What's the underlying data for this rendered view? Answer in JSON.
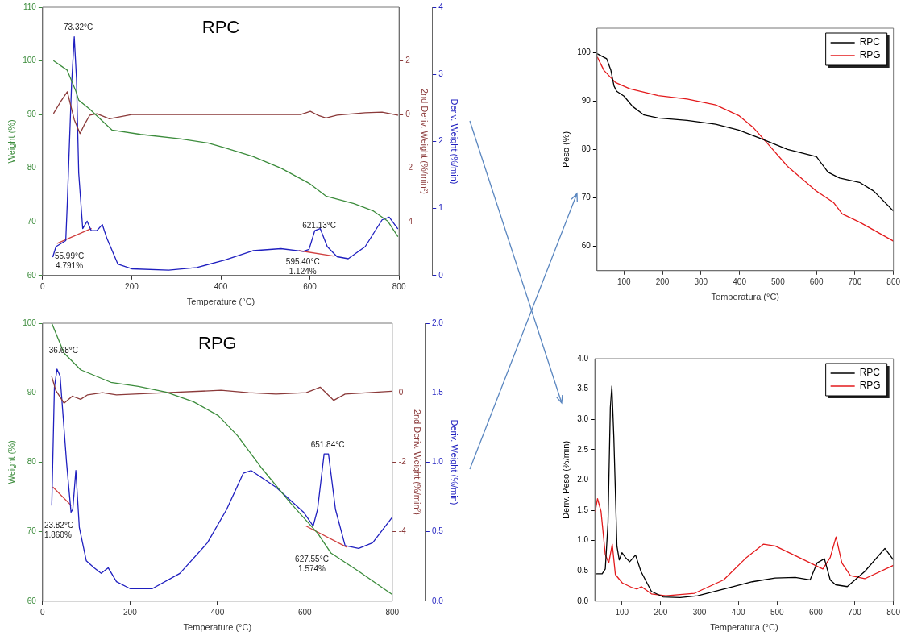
{
  "chart_data": [
    {
      "type": "line",
      "title": "RPC",
      "xlabel": "Temperature (°C)",
      "ylabel": "Weight (%)",
      "y2label": "2nd Deriv. Weight (%/min²)",
      "y3label": "Deriv. Weight (%/min)",
      "xlim": [
        0,
        800
      ],
      "xticks": [
        0,
        200,
        400,
        600,
        800
      ],
      "ylim": [
        60,
        110
      ],
      "yticks": [
        60,
        70,
        80,
        90,
        100,
        110
      ],
      "y2lim": [
        -6,
        4
      ],
      "y2ticks": [
        2,
        0,
        -2,
        -4
      ],
      "y3lim": [
        0,
        4
      ],
      "y3ticks": [
        0,
        1,
        2,
        3,
        4
      ],
      "series": [
        {
          "color": "#3c8c3c",
          "x": [
            25,
            55,
            74,
            81,
            106,
            156,
            220,
            308,
            371,
            409,
            472,
            535,
            598,
            636,
            699,
            743,
            775,
            797
          ],
          "values": [
            100,
            98.3,
            94.5,
            92.7,
            91,
            87.1,
            86.3,
            85.5,
            84.7,
            83.8,
            82.2,
            80,
            77.2,
            74.8,
            73.4,
            72,
            70.1,
            67.3
          ]
        },
        {
          "color": "#8b3a3a",
          "axis": "y2",
          "x": [
            25,
            40,
            55.5,
            71,
            84,
            93,
            106,
            122,
            150,
            200,
            535,
            579,
            601,
            617,
            636,
            661,
            724,
            762,
            797
          ],
          "values": [
            0.05,
            0.47,
            0.85,
            -0.19,
            -0.71,
            -0.4,
            -0.02,
            0.03,
            -0.16,
            0,
            0,
            0,
            0.12,
            -0.02,
            -0.13,
            -0.02,
            0.07,
            0.09,
            -0.02
          ]
        },
        {
          "color": "#1f1fbf",
          "axis": "y3",
          "x": [
            23,
            30,
            52,
            55.5,
            65,
            71,
            76,
            81,
            90,
            100,
            109,
            122,
            134,
            144,
            169,
            200,
            283,
            346,
            409,
            472,
            535,
            585,
            598,
            611,
            623,
            639,
            661,
            686,
            724,
            762,
            778,
            797
          ],
          "values": [
            0.28,
            0.43,
            0.52,
            1.09,
            2.85,
            3.56,
            2.94,
            1.53,
            0.7,
            0.81,
            0.67,
            0.67,
            0.76,
            0.56,
            0.17,
            0.1,
            0.08,
            0.12,
            0.23,
            0.37,
            0.4,
            0.36,
            0.39,
            0.67,
            0.7,
            0.43,
            0.28,
            0.25,
            0.43,
            0.83,
            0.87,
            0.7
          ]
        },
        {
          "color": "#d04040",
          "axis": "y3",
          "x": [
            33,
            109
          ],
          "values": [
            0.48,
            0.7
          ]
        },
        {
          "color": "#d04040",
          "axis": "y3",
          "x": [
            576,
            652
          ],
          "values": [
            0.37,
            0.29
          ]
        }
      ],
      "annotations": [
        "73.32°C",
        "55.99°C\n4.791%",
        "621.13°C",
        "595.40°C\n1.124%"
      ]
    },
    {
      "type": "line",
      "title": "RPG",
      "xlabel": "Temperature (°C)",
      "ylabel": "Weight (%)",
      "y2label": "2nd Deriv. Weight (%/min²)",
      "y3label": "Deriv. Weight (%/min)",
      "xlim": [
        0,
        800
      ],
      "xticks": [
        0,
        200,
        400,
        600,
        800
      ],
      "ylim": [
        60,
        100
      ],
      "yticks": [
        60,
        70,
        80,
        90,
        100
      ],
      "y2lim": [
        -6,
        2
      ],
      "y2ticks": [
        0,
        -2,
        -4
      ],
      "y3lim": [
        0,
        2
      ],
      "y3ticks": [
        {
          "value": 0,
          "label": "0.0"
        },
        {
          "value": 0.5,
          "label": "0.5"
        },
        {
          "value": 1,
          "label": "1.0"
        },
        {
          "value": 1.5,
          "label": "1.5"
        },
        {
          "value": 2,
          "label": "2.0"
        }
      ],
      "series": [
        {
          "color": "#3c8c3c",
          "x": [
            21,
            49,
            87,
            156,
            219,
            282,
            345,
            402,
            446,
            503,
            566,
            629,
            660,
            723,
            799
          ],
          "values": [
            100,
            95.7,
            93.3,
            91.5,
            90.9,
            90.1,
            88.7,
            86.7,
            83.8,
            79,
            74.2,
            69.8,
            66.9,
            64.3,
            61
          ]
        },
        {
          "color": "#8b3a3a",
          "axis": "y2",
          "x": [
            21,
            30,
            49,
            68,
            87,
            103,
            137,
            169,
            282,
            408,
            471,
            534,
            603,
            635,
            666,
            692,
            799
          ],
          "values": [
            0.46,
            0.07,
            -0.3,
            -0.1,
            -0.19,
            -0.06,
            0,
            -0.06,
            0,
            0.07,
            0,
            -0.04,
            0,
            0.16,
            -0.22,
            -0.04,
            0.04
          ]
        },
        {
          "color": "#1f1fbf",
          "axis": "y3",
          "x": [
            21,
            27,
            33,
            40,
            55,
            65,
            69,
            76,
            84,
            100,
            118,
            134,
            150,
            169,
            200,
            251,
            314,
            377,
            421,
            459,
            477,
            534,
            597,
            619,
            629,
            644,
            654,
            670,
            692,
            723,
            755,
            799
          ],
          "values": [
            0.69,
            1.54,
            1.67,
            1.62,
            0.99,
            0.64,
            0.66,
            0.94,
            0.53,
            0.29,
            0.24,
            0.2,
            0.24,
            0.14,
            0.09,
            0.09,
            0.2,
            0.42,
            0.66,
            0.92,
            0.94,
            0.82,
            0.64,
            0.54,
            0.66,
            1.06,
            1.06,
            0.66,
            0.4,
            0.38,
            0.42,
            0.6
          ]
        },
        {
          "color": "#d04040",
          "axis": "y3",
          "x": [
            24,
            65
          ],
          "values": [
            0.82,
            0.69
          ]
        },
        {
          "color": "#d04040",
          "axis": "y3",
          "x": [
            603,
            695
          ],
          "values": [
            0.54,
            0.39
          ]
        }
      ],
      "annotations": [
        "36.68°C",
        "23.82°C\n1.860%",
        "651.84°C",
        "627.55°C\n1.574%"
      ]
    },
    {
      "type": "line",
      "xlabel": "Temperatura (°C)",
      "ylabel": "Peso (%)",
      "xlim": [
        30,
        800
      ],
      "xticks": [
        100,
        200,
        300,
        400,
        500,
        600,
        700,
        800
      ],
      "ylim": [
        55,
        105
      ],
      "yticks": [
        60,
        70,
        80,
        90,
        100
      ],
      "legend": "top right",
      "series": [
        {
          "name": "RPC",
          "color": "#000000",
          "x": [
            31,
            55,
            66,
            74,
            81,
            100,
            122,
            152,
            189,
            264,
            338,
            398,
            450,
            525,
            600,
            630,
            660,
            712,
            749,
            800
          ],
          "values": [
            99.7,
            98.7,
            96.3,
            93.1,
            92,
            91,
            88.9,
            87.1,
            86.5,
            86,
            85.2,
            84,
            82.4,
            80,
            78.5,
            75.3,
            74.1,
            73.2,
            71.4,
            67.3
          ]
        },
        {
          "name": "RPG",
          "color": "#e31a1c",
          "x": [
            31,
            48,
            78,
            115,
            189,
            264,
            338,
            398,
            436,
            473,
            525,
            600,
            645,
            667,
            712,
            800
          ],
          "values": [
            99,
            96.3,
            93.8,
            92.5,
            91.1,
            90.4,
            89.2,
            87,
            84.5,
            81.2,
            76.5,
            71.4,
            69,
            66.7,
            65,
            61.1
          ]
        }
      ]
    },
    {
      "type": "line",
      "xlabel": "Temperatura (°C)",
      "ylabel": "Deriv. Peso (%/min)",
      "xlim": [
        30,
        800
      ],
      "xticks": [
        100,
        200,
        300,
        400,
        500,
        600,
        700,
        800
      ],
      "ylim": [
        0,
        4
      ],
      "yticks": [
        {
          "value": 0,
          "label": "0.0"
        },
        {
          "value": 0.5,
          "label": "0.5"
        },
        {
          "value": 1,
          "label": "1.0"
        },
        {
          "value": 1.5,
          "label": "1.5"
        },
        {
          "value": 2,
          "label": "2.0"
        },
        {
          "value": 2.5,
          "label": "2.5"
        },
        {
          "value": 3,
          "label": "3.0"
        },
        {
          "value": 3.5,
          "label": "3.5"
        },
        {
          "value": 4,
          "label": "4.0"
        }
      ],
      "legend": "top right",
      "series": [
        {
          "name": "RPC",
          "color": "#000000",
          "x": [
            35,
            49,
            57,
            64,
            70,
            74,
            79,
            87,
            93,
            100,
            109,
            120,
            135,
            149,
            176,
            206,
            250,
            295,
            362,
            436,
            495,
            547,
            585,
            603,
            622,
            637,
            651,
            681,
            726,
            778,
            800
          ],
          "values": [
            0.45,
            0.45,
            0.53,
            1.29,
            3.19,
            3.55,
            2.71,
            0.91,
            0.68,
            0.8,
            0.72,
            0.65,
            0.76,
            0.49,
            0.16,
            0.07,
            0.06,
            0.09,
            0.2,
            0.32,
            0.38,
            0.39,
            0.35,
            0.63,
            0.7,
            0.35,
            0.27,
            0.24,
            0.49,
            0.87,
            0.68
          ]
        },
        {
          "name": "RPG",
          "color": "#e31a1c",
          "x": [
            31,
            37,
            46,
            57,
            66,
            75,
            83,
            101,
            124,
            139,
            150,
            176,
            213,
            287,
            362,
            421,
            465,
            495,
            547,
            592,
            618,
            637,
            652,
            667,
            689,
            726,
            800
          ],
          "values": [
            1.48,
            1.69,
            1.48,
            0.77,
            0.63,
            0.94,
            0.44,
            0.3,
            0.23,
            0.2,
            0.24,
            0.12,
            0.09,
            0.13,
            0.35,
            0.72,
            0.94,
            0.91,
            0.75,
            0.61,
            0.53,
            0.72,
            1.06,
            0.63,
            0.42,
            0.37,
            0.59
          ]
        }
      ]
    }
  ]
}
